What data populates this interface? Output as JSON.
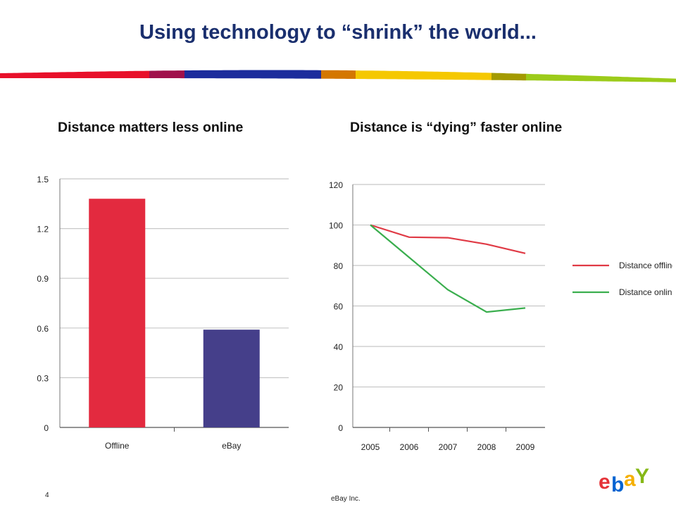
{
  "title": "Using technology to “shrink” the world...",
  "left_subtitle": "Distance matters less online",
  "right_subtitle": "Distance is “dying” faster online",
  "footer": {
    "page_number": "4",
    "company": "eBay Inc."
  },
  "logo": {
    "letters": [
      "e",
      "b",
      "a",
      "Y"
    ],
    "colors": [
      "#e53238",
      "#0064d2",
      "#f5af02",
      "#86b817"
    ]
  },
  "swoosh_colors": [
    "#e8102a",
    "#a0114b",
    "#1c2c9c",
    "#d47700",
    "#f5c800",
    "#a39a00",
    "#9ccb1a"
  ],
  "chart_data": [
    {
      "type": "bar",
      "categories": [
        "Offline",
        "eBay"
      ],
      "values": [
        1.38,
        0.59
      ],
      "colors": [
        "#e32a3f",
        "#453f8a"
      ],
      "yticks": [
        "0",
        "0.3",
        "0.6",
        "0.9",
        "1.2",
        "1.5"
      ],
      "ylim": [
        0,
        1.5
      ],
      "grid": true
    },
    {
      "type": "line",
      "x": [
        "2005",
        "2006",
        "2007",
        "2008",
        "2009"
      ],
      "yticks": [
        "0",
        "20",
        "40",
        "60",
        "80",
        "100",
        "120"
      ],
      "ylim": [
        0,
        120
      ],
      "grid": true,
      "legend_position": "right",
      "series": [
        {
          "name": "Distance offline",
          "values": [
            100,
            94,
            93.7,
            90.5,
            86
          ],
          "color": "#e03a45"
        },
        {
          "name": "Distance online",
          "values": [
            100,
            84,
            68,
            57,
            59
          ],
          "color": "#3aae4e"
        }
      ]
    }
  ]
}
